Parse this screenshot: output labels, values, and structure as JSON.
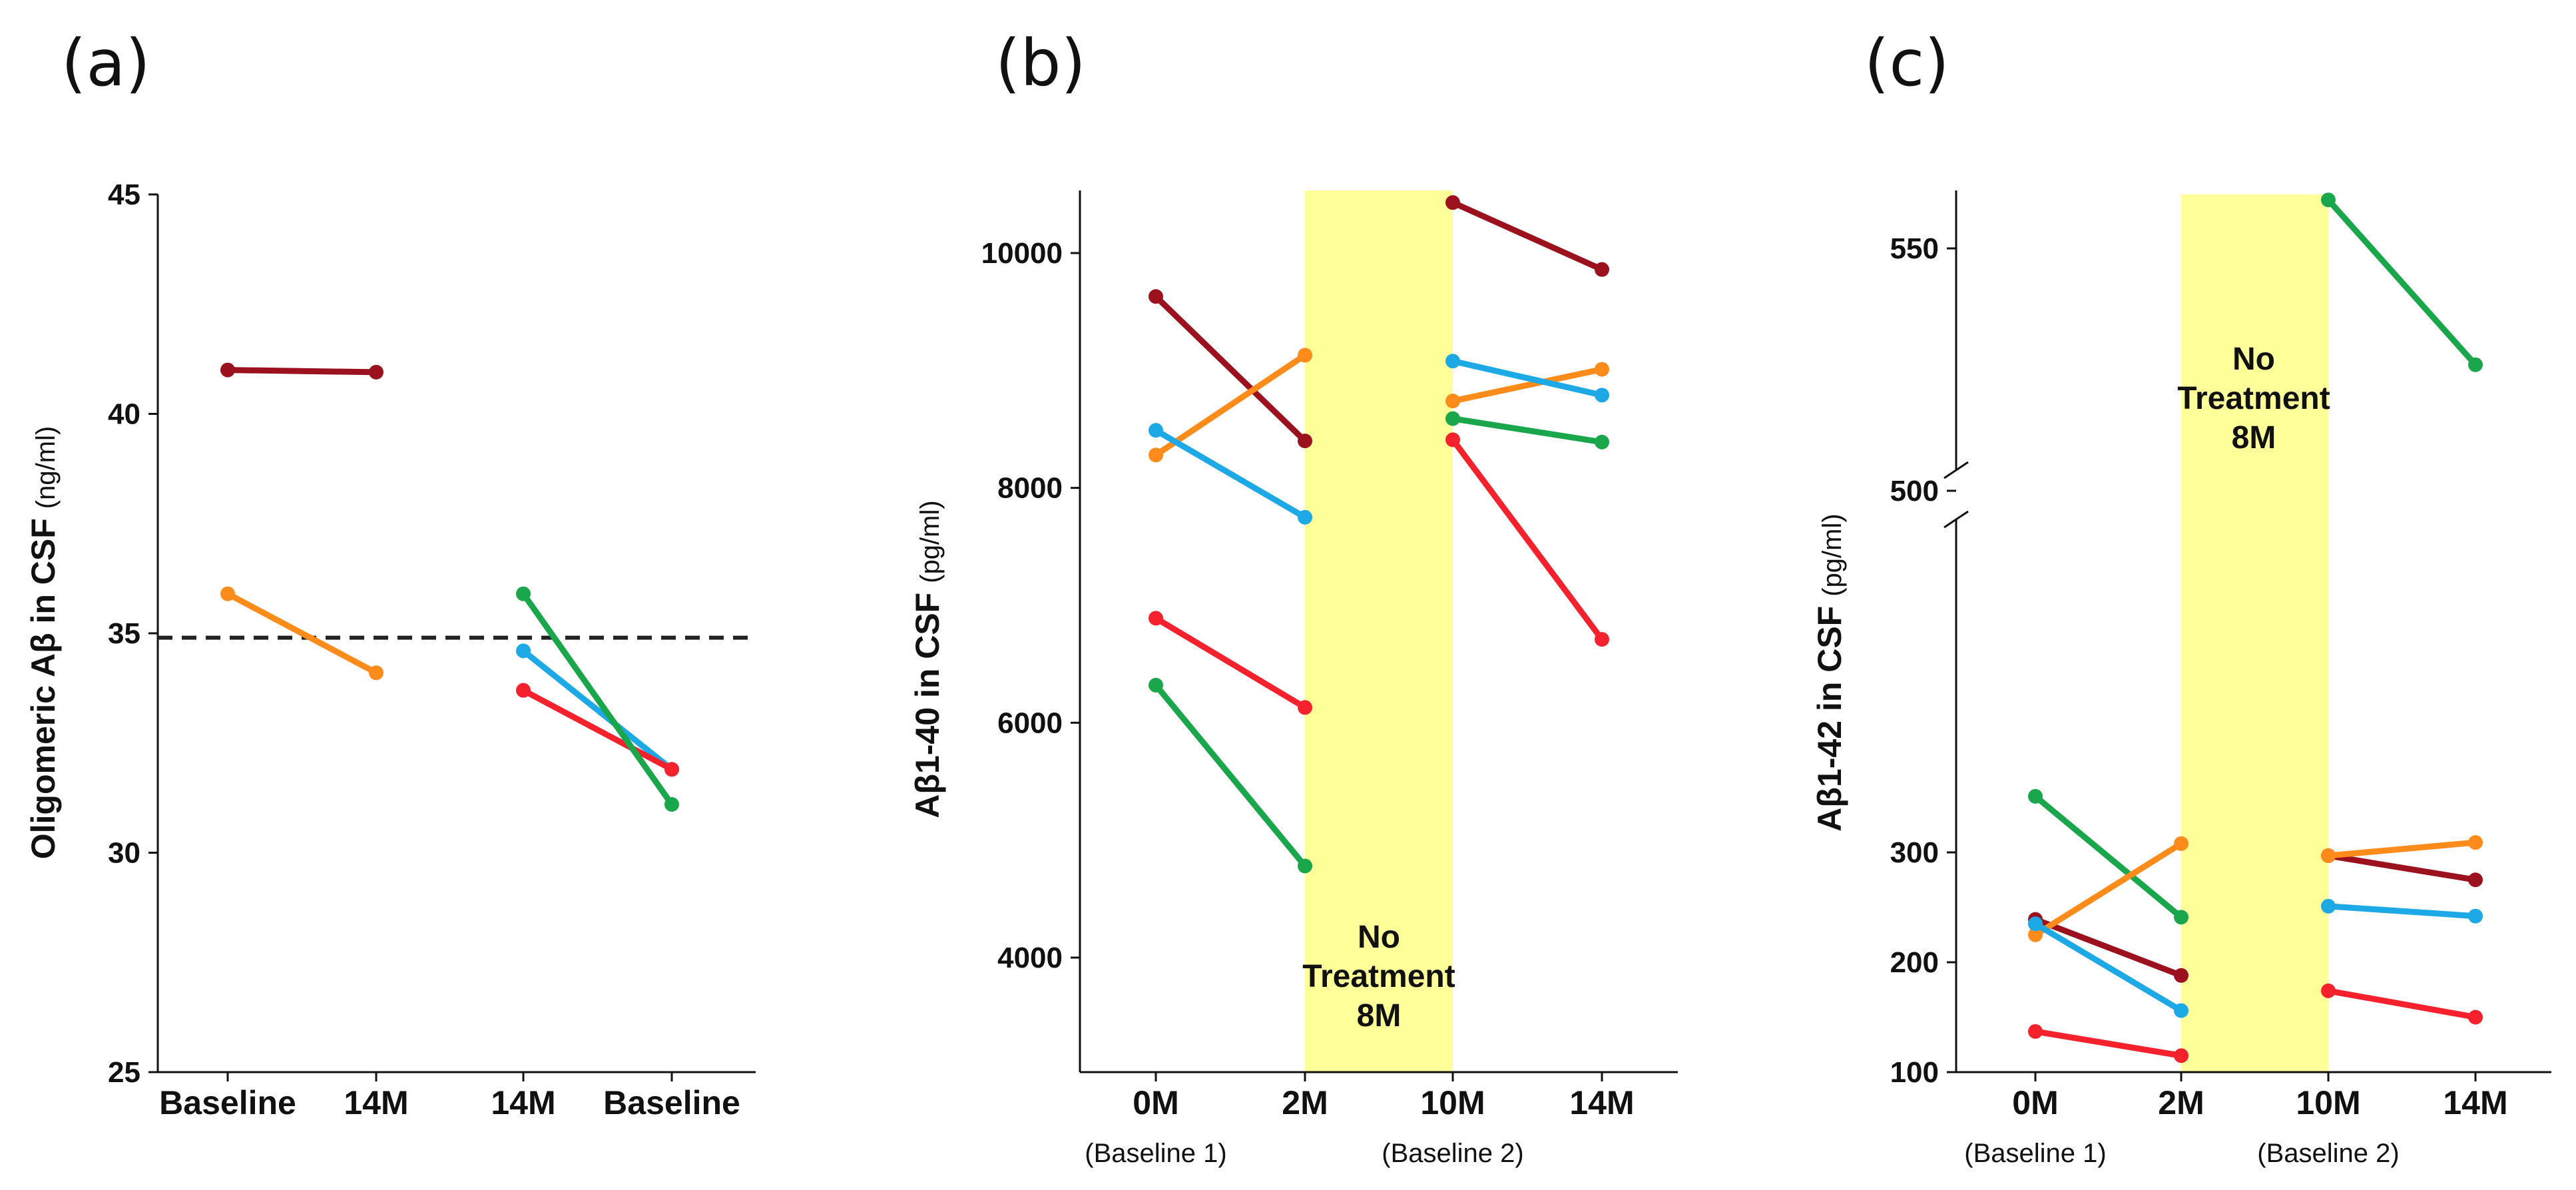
{
  "chart_data": [
    {
      "panel": "(a)",
      "type": "line",
      "ylabel": "Oligomeric Aβ in CSF",
      "ylabel_unit": "(ng/ml)",
      "ylim": [
        25,
        45
      ],
      "yticks": [
        25,
        30,
        35,
        40,
        45
      ],
      "categories": [
        "Baseline",
        "14M",
        "14M",
        "Baseline"
      ],
      "reference_line": {
        "y": 34.9,
        "style": "dashed"
      },
      "series": [
        {
          "color": "#9b111e",
          "points": [
            [
              0,
              41.0
            ],
            [
              1,
              40.95
            ]
          ]
        },
        {
          "color": "#ff8c1a",
          "points": [
            [
              0,
              35.9
            ],
            [
              1,
              34.1
            ]
          ]
        },
        {
          "color": "#1ca9e6",
          "points": [
            [
              2,
              34.6
            ],
            [
              3,
              31.9
            ]
          ]
        },
        {
          "color": "#f5222d",
          "points": [
            [
              2,
              33.7
            ],
            [
              3,
              31.9
            ]
          ]
        },
        {
          "color": "#1aa64a",
          "points": [
            [
              2,
              35.9
            ],
            [
              3,
              31.1
            ]
          ]
        }
      ]
    },
    {
      "panel": "(b)",
      "type": "line",
      "ylabel": "Aβ1-40 in CSF",
      "ylabel_unit": "(pg/ml)",
      "ylim": [
        3100,
        10500
      ],
      "yticks": [
        4000,
        6000,
        8000,
        10000
      ],
      "categories": [
        "0M",
        "2M",
        "10M",
        "14M"
      ],
      "sublabels": [
        "(Baseline 1)",
        "",
        "(Baseline 2)",
        ""
      ],
      "shaded_band": {
        "from": 1,
        "to": 2,
        "label": [
          "No",
          "Treatment",
          "8M"
        ],
        "color": "#ffff99"
      },
      "series": [
        {
          "color": "#9b111e",
          "points": [
            [
              0,
              9630
            ],
            [
              1,
              8400
            ],
            [
              2,
              10430
            ],
            [
              3,
              9860
            ]
          ]
        },
        {
          "color": "#ff8c1a",
          "points": [
            [
              0,
              8280
            ],
            [
              1,
              9130
            ],
            [
              2,
              8740
            ],
            [
              3,
              9010
            ]
          ]
        },
        {
          "color": "#1ca9e6",
          "points": [
            [
              0,
              8490
            ],
            [
              1,
              7750
            ],
            [
              2,
              9080
            ],
            [
              3,
              8790
            ]
          ]
        },
        {
          "color": "#f5222d",
          "points": [
            [
              0,
              6890
            ],
            [
              1,
              6130
            ],
            [
              2,
              8410
            ],
            [
              3,
              6710
            ]
          ]
        },
        {
          "color": "#1aa64a",
          "points": [
            [
              0,
              6320
            ],
            [
              1,
              4780
            ],
            [
              2,
              8590
            ],
            [
              3,
              8390
            ]
          ]
        }
      ]
    },
    {
      "panel": "(c)",
      "type": "line",
      "ylabel": "Aβ1-42 in CSF",
      "ylabel_unit": "(pg/ml)",
      "ylim": [
        100,
        565
      ],
      "yticks": [
        100,
        200,
        300,
        500,
        550
      ],
      "axis_break": [
        350,
        500
      ],
      "categories": [
        "0M",
        "2M",
        "10M",
        "14M"
      ],
      "sublabels": [
        "(Baseline 1)",
        "",
        "(Baseline 2)",
        ""
      ],
      "shaded_band": {
        "from": 1,
        "to": 2,
        "label": [
          "No",
          "Treatment",
          "8M"
        ],
        "color": "#ffff99"
      },
      "series": [
        {
          "color": "#1aa64a",
          "points": [
            [
              0,
              351
            ],
            [
              1,
              241
            ],
            [
              2,
              560
            ],
            [
              3,
              526
            ]
          ]
        },
        {
          "color": "#9b111e",
          "points": [
            [
              0,
              239
            ],
            [
              1,
              188
            ],
            [
              2,
              297
            ],
            [
              3,
              275
            ]
          ]
        },
        {
          "color": "#ff8c1a",
          "points": [
            [
              0,
              225
            ],
            [
              1,
              308
            ],
            [
              2,
              297
            ],
            [
              3,
              309
            ]
          ]
        },
        {
          "color": "#1ca9e6",
          "points": [
            [
              0,
              235
            ],
            [
              1,
              156
            ],
            [
              2,
              251
            ],
            [
              3,
              242
            ]
          ]
        },
        {
          "color": "#f5222d",
          "points": [
            [
              0,
              137
            ],
            [
              1,
              115
            ],
            [
              2,
              174
            ],
            [
              3,
              150
            ]
          ]
        }
      ]
    }
  ]
}
